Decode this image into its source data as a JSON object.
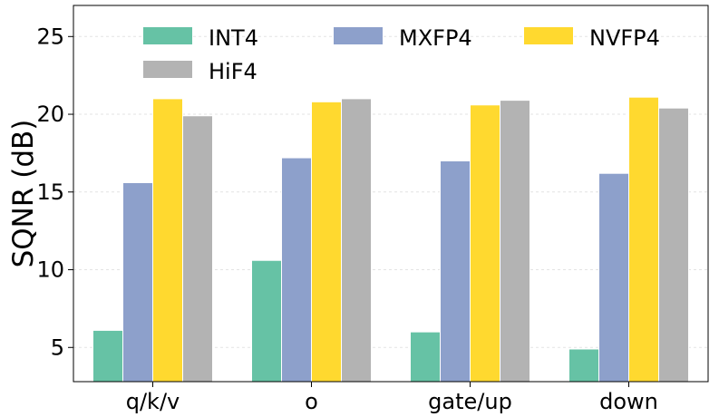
{
  "chart_data": {
    "type": "bar",
    "title": "",
    "xlabel": "",
    "ylabel": "SQNR (dB)",
    "ylim": [
      2.8,
      27.0
    ],
    "yticks": [
      5,
      10,
      15,
      20,
      25
    ],
    "grid": true,
    "legend_position": "top",
    "categories": [
      "q/k/v",
      "o",
      "gate/up",
      "down"
    ],
    "series": [
      {
        "name": "INT4",
        "color": "#66c2a5",
        "values": [
          6.1,
          10.6,
          6.0,
          4.9
        ]
      },
      {
        "name": "MXFP4",
        "color": "#8da0cb",
        "values": [
          15.6,
          17.2,
          17.0,
          16.2
        ]
      },
      {
        "name": "NVFP4",
        "color": "#ffd92f",
        "values": [
          21.0,
          20.8,
          20.6,
          21.1
        ]
      },
      {
        "name": "HiF4",
        "color": "#b3b3b3",
        "values": [
          19.9,
          21.0,
          20.9,
          20.4
        ]
      }
    ]
  }
}
